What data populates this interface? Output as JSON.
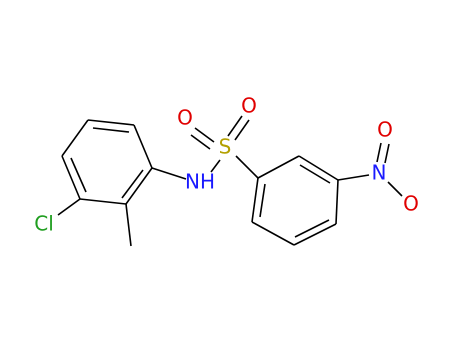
{
  "atoms": {
    "chlorine": "Cl",
    "amine": "NH",
    "sulfur": "S",
    "sulfonyl_oxygen_top": "O",
    "sulfonyl_oxygen_left": "O",
    "nitro_nitrogen": "N",
    "nitro_oxygen_top": "O",
    "nitro_oxygen_bottom": "O"
  }
}
